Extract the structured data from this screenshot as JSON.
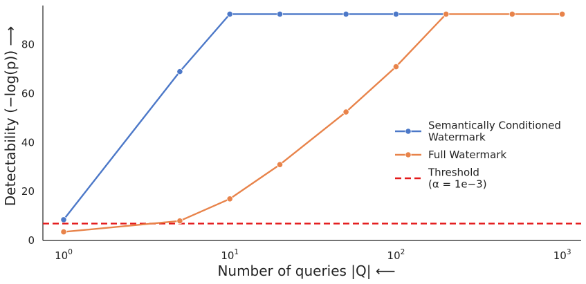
{
  "chart_data": {
    "type": "line",
    "xscale": "log",
    "xlim": [
      0.75,
      1300
    ],
    "ylim": [
      0,
      96
    ],
    "xticks": [
      {
        "value": 1,
        "base": "10",
        "exp": "0"
      },
      {
        "value": 10,
        "base": "10",
        "exp": "1"
      },
      {
        "value": 100,
        "base": "10",
        "exp": "2"
      },
      {
        "value": 1000,
        "base": "10",
        "exp": "3"
      }
    ],
    "yticks": [
      0,
      20,
      40,
      60,
      80
    ],
    "xlabel": "Number of queries |Q| ⟵",
    "ylabel": "Detectability (−log(p)) ⟶",
    "grid": false,
    "legend_position": "center-right",
    "series": [
      {
        "name_lines": [
          "Semantically Conditioned",
          "Watermark"
        ],
        "color": "#4c78c8",
        "style": "solid",
        "x": [
          1,
          5,
          10,
          20,
          50,
          100,
          200
        ],
        "y": [
          8.5,
          69,
          92.5,
          92.5,
          92.5,
          92.5,
          92.5
        ]
      },
      {
        "name_lines": [
          "Full Watermark"
        ],
        "color": "#e8834a",
        "style": "solid",
        "x": [
          1,
          5,
          10,
          20,
          50,
          100,
          200,
          500,
          1000
        ],
        "y": [
          3.5,
          8,
          17,
          31,
          52.5,
          71,
          92.5,
          92.5,
          92.5
        ]
      }
    ],
    "threshold": {
      "name_lines": [
        "Threshold",
        "(α = 1e−3)"
      ],
      "color": "#e31a1c",
      "style": "dashed",
      "y": 6.9
    }
  }
}
